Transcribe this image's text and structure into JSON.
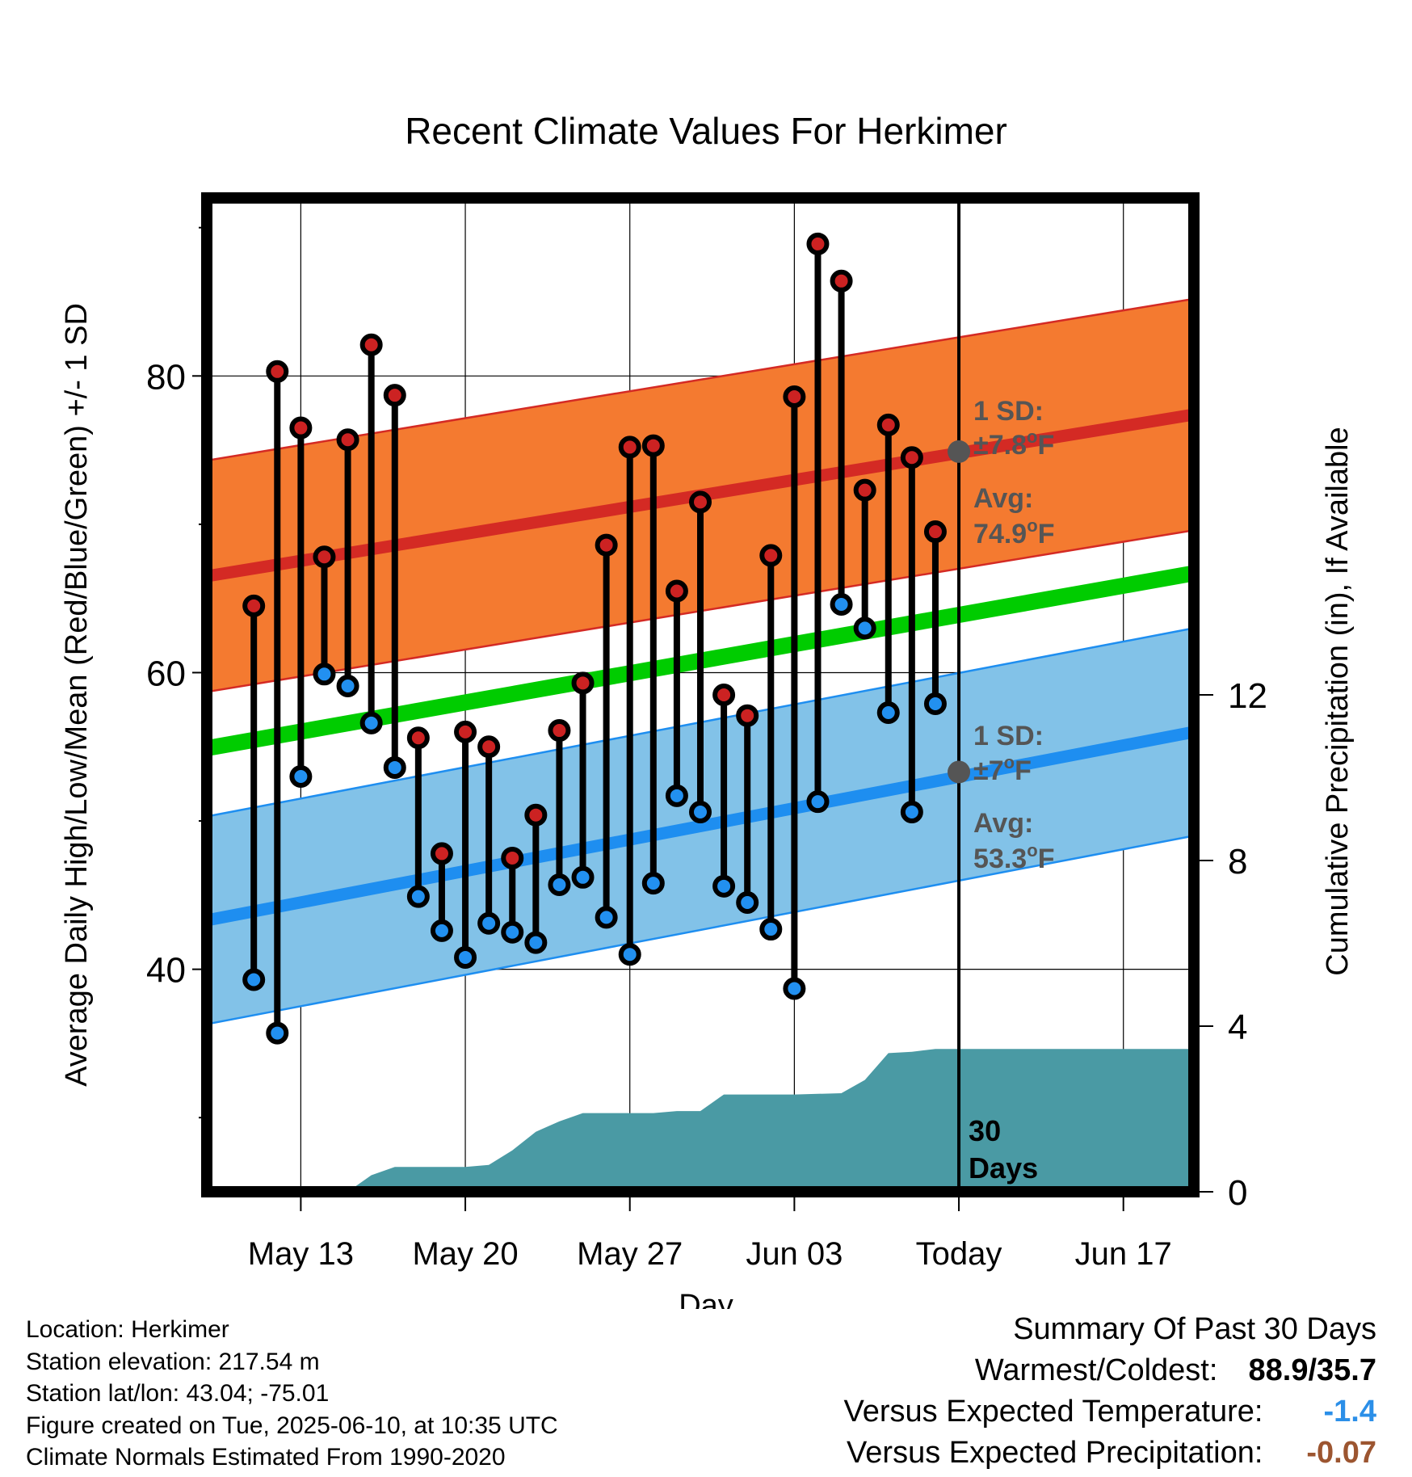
{
  "chart_data": {
    "type": "line",
    "title": "Recent Climate Values For Herkimer",
    "xlabel": "Day",
    "ylabel": "Average Daily High/Low/Mean (Red/Blue/Green) +/- 1 SD",
    "ylabel_right": "Cumulative Precipitation (in), If Available",
    "x_range": [
      "2025-05-09",
      "2025-06-20"
    ],
    "ylim": [
      25,
      92
    ],
    "ylim_right": [
      0,
      24
    ],
    "x_ticks": [
      {
        "date": "2025-05-13",
        "label": "May 13"
      },
      {
        "date": "2025-05-20",
        "label": "May 20"
      },
      {
        "date": "2025-05-27",
        "label": "May 27"
      },
      {
        "date": "2025-06-03",
        "label": "Jun 03"
      },
      {
        "date": "2025-06-10",
        "label": "Today"
      },
      {
        "date": "2025-06-17",
        "label": "Jun 17"
      }
    ],
    "y_ticks": [
      40,
      60,
      80
    ],
    "y_ticks_right": [
      0,
      4,
      8,
      12
    ],
    "grid": true,
    "today": "2025-06-10",
    "today_label": "30 Days",
    "daily": [
      {
        "date": "2025-05-11",
        "high": 64.5,
        "low": 39.3
      },
      {
        "date": "2025-05-12",
        "high": 80.3,
        "low": 35.7
      },
      {
        "date": "2025-05-13",
        "high": 76.5,
        "low": 53.0
      },
      {
        "date": "2025-05-14",
        "high": 67.8,
        "low": 59.9
      },
      {
        "date": "2025-05-15",
        "high": 75.7,
        "low": 59.1
      },
      {
        "date": "2025-05-16",
        "high": 82.1,
        "low": 56.6
      },
      {
        "date": "2025-05-17",
        "high": 78.7,
        "low": 53.6
      },
      {
        "date": "2025-05-18",
        "high": 55.6,
        "low": 44.9
      },
      {
        "date": "2025-05-19",
        "high": 47.8,
        "low": 42.6
      },
      {
        "date": "2025-05-20",
        "high": 56.0,
        "low": 40.8
      },
      {
        "date": "2025-05-21",
        "high": 55.0,
        "low": 43.1
      },
      {
        "date": "2025-05-22",
        "high": 47.5,
        "low": 42.5
      },
      {
        "date": "2025-05-23",
        "high": 50.4,
        "low": 41.8
      },
      {
        "date": "2025-05-24",
        "high": 56.1,
        "low": 45.7
      },
      {
        "date": "2025-05-25",
        "high": 59.3,
        "low": 46.2
      },
      {
        "date": "2025-05-26",
        "high": 68.6,
        "low": 43.5
      },
      {
        "date": "2025-05-27",
        "high": 75.2,
        "low": 41.0
      },
      {
        "date": "2025-05-28",
        "high": 75.3,
        "low": 45.8
      },
      {
        "date": "2025-05-29",
        "high": 65.5,
        "low": 51.7
      },
      {
        "date": "2025-05-30",
        "high": 71.5,
        "low": 50.6
      },
      {
        "date": "2025-05-31",
        "high": 58.5,
        "low": 45.6
      },
      {
        "date": "2025-06-01",
        "high": 57.1,
        "low": 44.5
      },
      {
        "date": "2025-06-02",
        "high": 67.9,
        "low": 42.7
      },
      {
        "date": "2025-06-03",
        "high": 78.6,
        "low": 38.7
      },
      {
        "date": "2025-06-04",
        "high": 88.9,
        "low": 51.3
      },
      {
        "date": "2025-06-05",
        "high": 86.4,
        "low": 64.6
      },
      {
        "date": "2025-06-06",
        "high": 72.3,
        "low": 63.0
      },
      {
        "date": "2025-06-07",
        "high": 76.7,
        "low": 57.3
      },
      {
        "date": "2025-06-08",
        "high": 74.5,
        "low": 50.6
      },
      {
        "date": "2025-06-09",
        "high": 69.5,
        "low": 57.9
      }
    ],
    "normals": {
      "high_avg": [
        {
          "date": "2025-05-09",
          "value": 66.5
        },
        {
          "date": "2025-06-20",
          "value": 77.4
        }
      ],
      "high_sd": 7.8,
      "low_avg": [
        {
          "date": "2025-05-09",
          "value": 43.3
        },
        {
          "date": "2025-06-20",
          "value": 56.0
        }
      ],
      "low_sd": 7.0,
      "mean_avg": [
        {
          "date": "2025-05-09",
          "value": 54.9
        },
        {
          "date": "2025-06-20",
          "value": 66.7
        }
      ]
    },
    "annotations": {
      "high_sd_label": "1 SD:",
      "high_sd_value": "±7.8",
      "high_avg_label": "Avg:",
      "high_avg_value": "74.9",
      "low_sd_label": "1 SD:",
      "low_sd_value": "±7",
      "low_avg_label": "Avg:",
      "low_avg_value": "53.3",
      "degree_symbol": "o",
      "unit": "F"
    },
    "precip_cumulative": [
      {
        "date": "2025-05-09",
        "value": 0
      },
      {
        "date": "2025-05-15",
        "value": 0
      },
      {
        "date": "2025-05-16",
        "value": 0.4
      },
      {
        "date": "2025-05-17",
        "value": 0.6
      },
      {
        "date": "2025-05-20",
        "value": 0.6
      },
      {
        "date": "2025-05-21",
        "value": 0.65
      },
      {
        "date": "2025-05-22",
        "value": 1.0
      },
      {
        "date": "2025-05-23",
        "value": 1.45
      },
      {
        "date": "2025-05-24",
        "value": 1.7
      },
      {
        "date": "2025-05-25",
        "value": 1.9
      },
      {
        "date": "2025-05-28",
        "value": 1.9
      },
      {
        "date": "2025-05-29",
        "value": 1.95
      },
      {
        "date": "2025-05-30",
        "value": 1.95
      },
      {
        "date": "2025-05-31",
        "value": 2.35
      },
      {
        "date": "2025-06-03",
        "value": 2.35
      },
      {
        "date": "2025-06-05",
        "value": 2.38
      },
      {
        "date": "2025-06-06",
        "value": 2.7
      },
      {
        "date": "2025-06-07",
        "value": 3.35
      },
      {
        "date": "2025-06-08",
        "value": 3.38
      },
      {
        "date": "2025-06-09",
        "value": 3.45
      },
      {
        "date": "2025-06-20",
        "value": 3.45
      }
    ]
  },
  "colors": {
    "high_band": "#f47a30",
    "high_line": "#d42a24",
    "low_band": "#82c2e8",
    "low_line": "#1e8ef0",
    "mean_line": "#00cc00",
    "precip": "#4a9aa4",
    "high_dot": "#cc2222",
    "low_dot": "#2290f0",
    "anno_text": "#555555",
    "summary_temp": "#2b8fe8",
    "summary_precip": "#9c5530"
  },
  "footer": {
    "location": "Location: Herkimer",
    "elevation": "Station elevation: 217.54 m",
    "latlon": "Station lat/lon: 43.04; -75.01",
    "created": "Figure created on Tue, 2025-06-10, at 10:35 UTC",
    "normals": "Climate Normals Estimated From 1990-2020"
  },
  "summary": {
    "heading": "Summary Of Past 30 Days",
    "warmest_label": "Warmest/Coldest:",
    "warmest_value": "88.9/35.7",
    "temp_label": "Versus Expected Temperature:",
    "temp_value": "-1.4",
    "precip_label": "Versus Expected Precipitation:",
    "precip_value": "-0.07"
  }
}
